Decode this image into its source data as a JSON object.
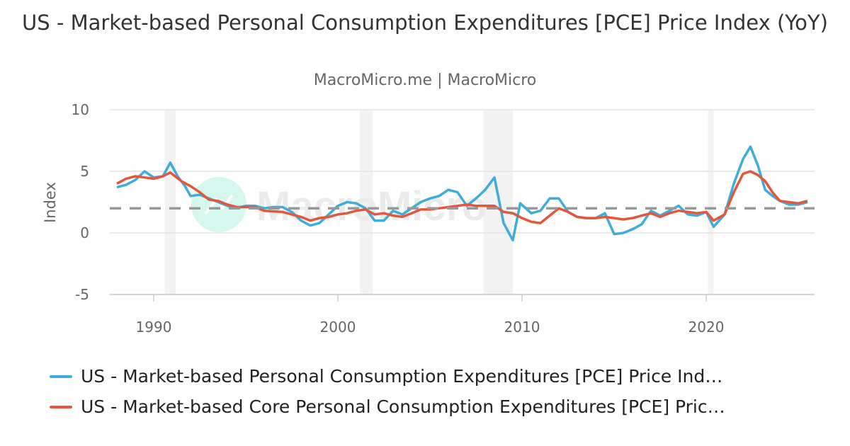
{
  "chart_data": {
    "type": "line",
    "title": "US - Market-based Personal Consumption Expenditures [PCE] Price Index (YoY)",
    "subtitle": "MacroMicro.me | MacroMicro",
    "ylabel": "Index",
    "xlabel": "",
    "ylim": [
      -5,
      10
    ],
    "xlim": [
      1987.6,
      2026.1
    ],
    "yticks": [
      "10",
      "5",
      "0",
      "-5"
    ],
    "xticks": [
      "1990",
      "2000",
      "2010",
      "2020"
    ],
    "grid": true,
    "legend_position": "bottom",
    "reference_line": {
      "value": 2,
      "style": "dashed",
      "color": "#999999"
    },
    "recessions": [
      [
        1990.6,
        1991.2
      ],
      [
        2001.2,
        2001.9
      ],
      [
        2007.9,
        2009.5
      ],
      [
        2020.1,
        2020.4
      ]
    ],
    "series": [
      {
        "name": "US - Market-based Personal Consumption Expenditures [PCE] Price Ind…",
        "color": "#3eadd9",
        "points": [
          [
            1988.0,
            3.7
          ],
          [
            1988.5,
            3.9
          ],
          [
            1989.0,
            4.3
          ],
          [
            1989.5,
            5.0
          ],
          [
            1990.0,
            4.5
          ],
          [
            1990.5,
            4.6
          ],
          [
            1990.9,
            5.7
          ],
          [
            1991.3,
            4.6
          ],
          [
            1991.7,
            3.8
          ],
          [
            1992.0,
            3.0
          ],
          [
            1992.5,
            3.1
          ],
          [
            1993.0,
            2.8
          ],
          [
            1993.5,
            2.5
          ],
          [
            1994.0,
            2.2
          ],
          [
            1994.5,
            2.0
          ],
          [
            1995.0,
            2.2
          ],
          [
            1995.5,
            2.2
          ],
          [
            1996.0,
            2.0
          ],
          [
            1996.5,
            2.1
          ],
          [
            1997.0,
            2.1
          ],
          [
            1997.5,
            1.7
          ],
          [
            1998.0,
            1.0
          ],
          [
            1998.5,
            0.6
          ],
          [
            1999.0,
            0.8
          ],
          [
            1999.5,
            1.5
          ],
          [
            2000.0,
            2.2
          ],
          [
            2000.5,
            2.5
          ],
          [
            2001.0,
            2.4
          ],
          [
            2001.5,
            2.0
          ],
          [
            2002.0,
            1.0
          ],
          [
            2002.5,
            1.0
          ],
          [
            2003.0,
            1.8
          ],
          [
            2003.5,
            1.5
          ],
          [
            2004.0,
            2.0
          ],
          [
            2004.5,
            2.5
          ],
          [
            2005.0,
            2.8
          ],
          [
            2005.5,
            3.0
          ],
          [
            2006.0,
            3.5
          ],
          [
            2006.5,
            3.3
          ],
          [
            2007.0,
            2.2
          ],
          [
            2007.5,
            2.8
          ],
          [
            2008.0,
            3.5
          ],
          [
            2008.5,
            4.5
          ],
          [
            2009.0,
            0.8
          ],
          [
            2009.5,
            -0.6
          ],
          [
            2009.9,
            2.4
          ],
          [
            2010.5,
            1.6
          ],
          [
            2011.0,
            1.8
          ],
          [
            2011.5,
            2.8
          ],
          [
            2012.0,
            2.8
          ],
          [
            2012.5,
            1.7
          ],
          [
            2013.0,
            1.3
          ],
          [
            2013.5,
            1.2
          ],
          [
            2014.0,
            1.2
          ],
          [
            2014.5,
            1.6
          ],
          [
            2015.0,
            -0.1
          ],
          [
            2015.5,
            0.0
          ],
          [
            2016.0,
            0.3
          ],
          [
            2016.5,
            0.7
          ],
          [
            2017.0,
            1.8
          ],
          [
            2017.5,
            1.4
          ],
          [
            2018.0,
            1.8
          ],
          [
            2018.5,
            2.2
          ],
          [
            2019.0,
            1.5
          ],
          [
            2019.5,
            1.4
          ],
          [
            2020.0,
            1.7
          ],
          [
            2020.4,
            0.5
          ],
          [
            2021.0,
            1.5
          ],
          [
            2021.5,
            4.0
          ],
          [
            2022.0,
            6.0
          ],
          [
            2022.4,
            7.0
          ],
          [
            2022.8,
            5.5
          ],
          [
            2023.2,
            3.5
          ],
          [
            2023.6,
            3.0
          ],
          [
            2024.0,
            2.6
          ],
          [
            2024.5,
            2.3
          ],
          [
            2025.0,
            2.3
          ],
          [
            2025.5,
            2.5
          ]
        ]
      },
      {
        "name": "US - Market-based Core Personal Consumption Expenditures [PCE] Pric…",
        "color": "#e5573b",
        "points": [
          [
            1988.0,
            4.0
          ],
          [
            1988.5,
            4.4
          ],
          [
            1989.0,
            4.6
          ],
          [
            1989.5,
            4.5
          ],
          [
            1990.0,
            4.4
          ],
          [
            1990.5,
            4.6
          ],
          [
            1990.9,
            4.9
          ],
          [
            1991.5,
            4.2
          ],
          [
            1992.0,
            3.8
          ],
          [
            1992.5,
            3.3
          ],
          [
            1993.0,
            2.7
          ],
          [
            1993.5,
            2.6
          ],
          [
            1994.0,
            2.3
          ],
          [
            1994.5,
            2.1
          ],
          [
            1995.0,
            2.1
          ],
          [
            1995.5,
            2.1
          ],
          [
            1996.0,
            1.8
          ],
          [
            1997.0,
            1.7
          ],
          [
            1997.5,
            1.5
          ],
          [
            1998.0,
            1.3
          ],
          [
            1998.5,
            1.0
          ],
          [
            1999.0,
            1.2
          ],
          [
            1999.5,
            1.3
          ],
          [
            2000.0,
            1.5
          ],
          [
            2000.5,
            1.6
          ],
          [
            2001.0,
            1.8
          ],
          [
            2001.5,
            1.9
          ],
          [
            2002.0,
            1.5
          ],
          [
            2002.5,
            1.6
          ],
          [
            2003.0,
            1.4
          ],
          [
            2003.5,
            1.3
          ],
          [
            2004.0,
            1.6
          ],
          [
            2004.5,
            1.9
          ],
          [
            2005.0,
            1.9
          ],
          [
            2005.5,
            2.0
          ],
          [
            2006.0,
            2.1
          ],
          [
            2006.5,
            2.2
          ],
          [
            2007.0,
            2.3
          ],
          [
            2007.5,
            2.2
          ],
          [
            2008.0,
            2.2
          ],
          [
            2008.5,
            2.2
          ],
          [
            2009.0,
            1.7
          ],
          [
            2009.5,
            1.6
          ],
          [
            2010.0,
            1.2
          ],
          [
            2010.5,
            0.9
          ],
          [
            2011.0,
            0.8
          ],
          [
            2011.5,
            1.4
          ],
          [
            2012.0,
            2.0
          ],
          [
            2012.5,
            1.7
          ],
          [
            2013.0,
            1.3
          ],
          [
            2013.5,
            1.2
          ],
          [
            2014.0,
            1.2
          ],
          [
            2014.5,
            1.3
          ],
          [
            2015.0,
            1.2
          ],
          [
            2015.5,
            1.1
          ],
          [
            2016.0,
            1.2
          ],
          [
            2016.5,
            1.4
          ],
          [
            2017.0,
            1.6
          ],
          [
            2017.5,
            1.3
          ],
          [
            2018.0,
            1.6
          ],
          [
            2018.5,
            1.8
          ],
          [
            2019.0,
            1.7
          ],
          [
            2019.5,
            1.6
          ],
          [
            2020.0,
            1.7
          ],
          [
            2020.4,
            1.0
          ],
          [
            2021.0,
            1.5
          ],
          [
            2021.5,
            3.3
          ],
          [
            2022.0,
            4.8
          ],
          [
            2022.4,
            5.0
          ],
          [
            2022.8,
            4.7
          ],
          [
            2023.2,
            4.2
          ],
          [
            2023.6,
            3.3
          ],
          [
            2024.0,
            2.6
          ],
          [
            2024.5,
            2.5
          ],
          [
            2025.0,
            2.4
          ],
          [
            2025.5,
            2.6
          ]
        ]
      }
    ]
  },
  "watermark": "MacroMicro"
}
